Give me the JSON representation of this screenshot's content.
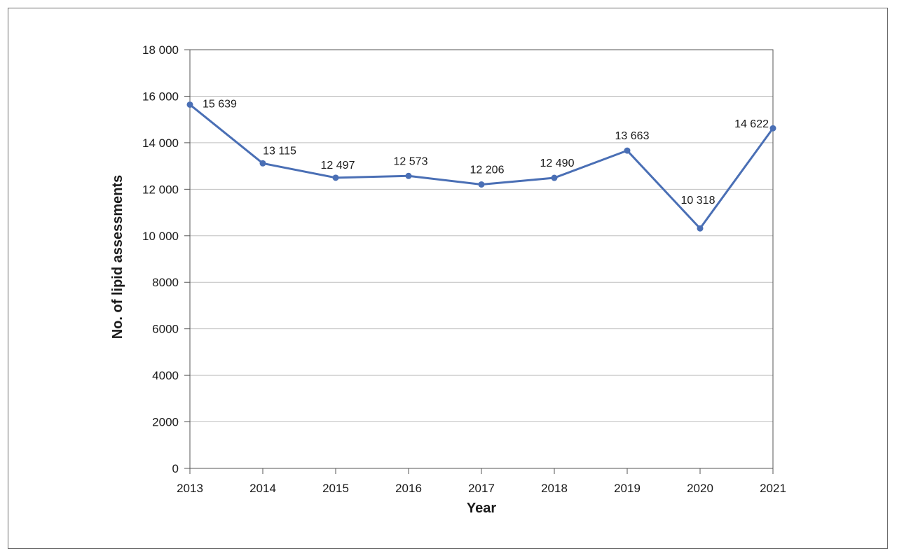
{
  "chart_data": {
    "type": "line",
    "title": "",
    "xlabel": "Year",
    "ylabel": "No. of lipid assessments",
    "categories": [
      "2013",
      "2014",
      "2015",
      "2016",
      "2017",
      "2018",
      "2019",
      "2020",
      "2021"
    ],
    "series": [
      {
        "values": [
          15639,
          13115,
          12497,
          12573,
          12206,
          12490,
          13663,
          10318,
          14622
        ],
        "labels": [
          "15 639",
          "13 115",
          "12 497",
          "12 573",
          "12 206",
          "12 490",
          "13 663",
          "10 318",
          "14 622"
        ]
      }
    ],
    "ylim": [
      0,
      18000
    ],
    "yticks": [
      0,
      2000,
      4000,
      6000,
      8000,
      10000,
      12000,
      14000,
      16000,
      18000
    ],
    "ytick_labels": [
      "0",
      "2000",
      "4000",
      "6000",
      "8000",
      "10 000",
      "12 000",
      "14 000",
      "16 000",
      "18 000"
    ],
    "grid": "horizontal",
    "legend": "none",
    "line_color": "#4a6fb5",
    "grid_color": "#bfbfbf",
    "axis_color": "#555555"
  }
}
